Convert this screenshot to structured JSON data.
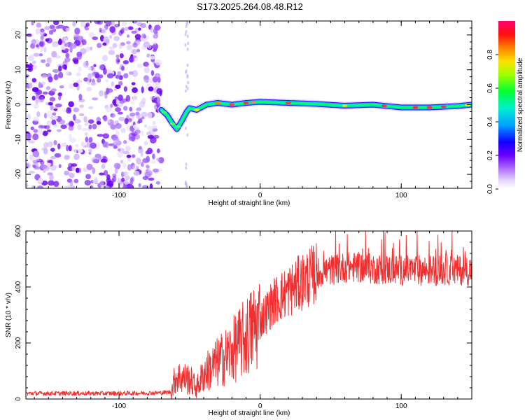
{
  "title": "S173.2025.264.08.48.R12",
  "chart_data": [
    {
      "type": "heatmap",
      "name": "spectrogram",
      "xlabel": "Height of straight line (km)",
      "ylabel": "Frequency (Hz)",
      "xlim": [
        -166,
        150
      ],
      "ylim": [
        -24,
        24
      ],
      "xticks": [
        -100,
        0,
        100
      ],
      "yticks": [
        -20,
        -10,
        0,
        10,
        20
      ],
      "colorbar": {
        "label": "Normalized spectral amplitude",
        "range": [
          0,
          1
        ],
        "ticks": [
          0.0,
          0.2,
          0.4,
          0.6,
          0.8
        ],
        "tick_labels": [
          "0.0",
          "0.2",
          "0.4",
          "0.6",
          "0.8"
        ],
        "colors": [
          "#ffffff",
          "#e0d0ff",
          "#9b4dff",
          "#6600ff",
          "#0000ff",
          "#00bfff",
          "#00ffcc",
          "#00ff00",
          "#ffff00",
          "#ff8000",
          "#ff0000",
          "#ff0066"
        ]
      },
      "noise_region": {
        "x_range": [
          -166,
          -70
        ],
        "y_range": [
          -24,
          24
        ]
      },
      "ridge": {
        "x": [
          -70,
          -66,
          -62,
          -59,
          -56,
          -52,
          -50,
          -45,
          -38,
          -30,
          -20,
          -10,
          0,
          20,
          40,
          60,
          80,
          100,
          120,
          140,
          150
        ],
        "y": [
          -1.5,
          -3,
          -5.5,
          -7,
          -5,
          -2,
          -1,
          -1.5,
          0,
          0.5,
          0,
          0.5,
          0.8,
          0.5,
          0.2,
          -0.3,
          0,
          -0.8,
          -0.8,
          -0.4,
          0
        ]
      }
    },
    {
      "type": "line",
      "name": "snr",
      "xlabel": "Height of straight line (km)",
      "ylabel": "SNR (10 * v/v)",
      "xlim": [
        -166,
        150
      ],
      "ylim": [
        0,
        600
      ],
      "xticks": [
        -100,
        0,
        100
      ],
      "yticks": [
        0,
        200,
        400,
        600
      ],
      "color": "#f03030",
      "trend": {
        "x": [
          -166,
          -100,
          -70,
          -63,
          -60,
          -50,
          -45,
          -40,
          -30,
          -20,
          -10,
          0,
          10,
          20,
          30,
          40,
          50,
          60,
          70,
          80,
          100,
          120,
          150
        ],
        "y": [
          20,
          20,
          22,
          25,
          80,
          70,
          40,
          90,
          130,
          170,
          220,
          280,
          350,
          385,
          420,
          450,
          460,
          470,
          470,
          465,
          460,
          460,
          460
        ]
      }
    }
  ]
}
